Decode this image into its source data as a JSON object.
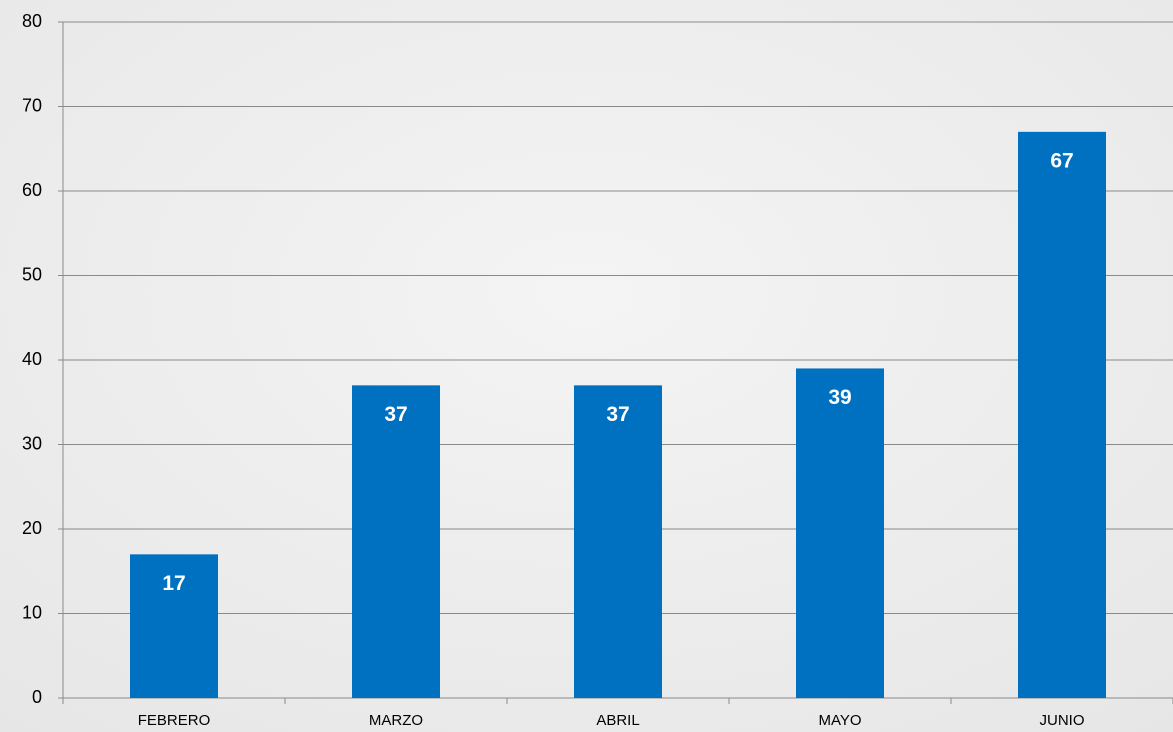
{
  "chart_data": {
    "type": "bar",
    "categories": [
      "FEBRERO",
      "MARZO",
      "ABRIL",
      "MAYO",
      "JUNIO"
    ],
    "values": [
      17,
      37,
      37,
      39,
      67
    ],
    "color": "#0070c0",
    "ylim": [
      0,
      80
    ],
    "yticks": [
      0,
      10,
      20,
      30,
      40,
      50,
      60,
      70,
      80
    ],
    "grid": true,
    "data_labels": true
  }
}
